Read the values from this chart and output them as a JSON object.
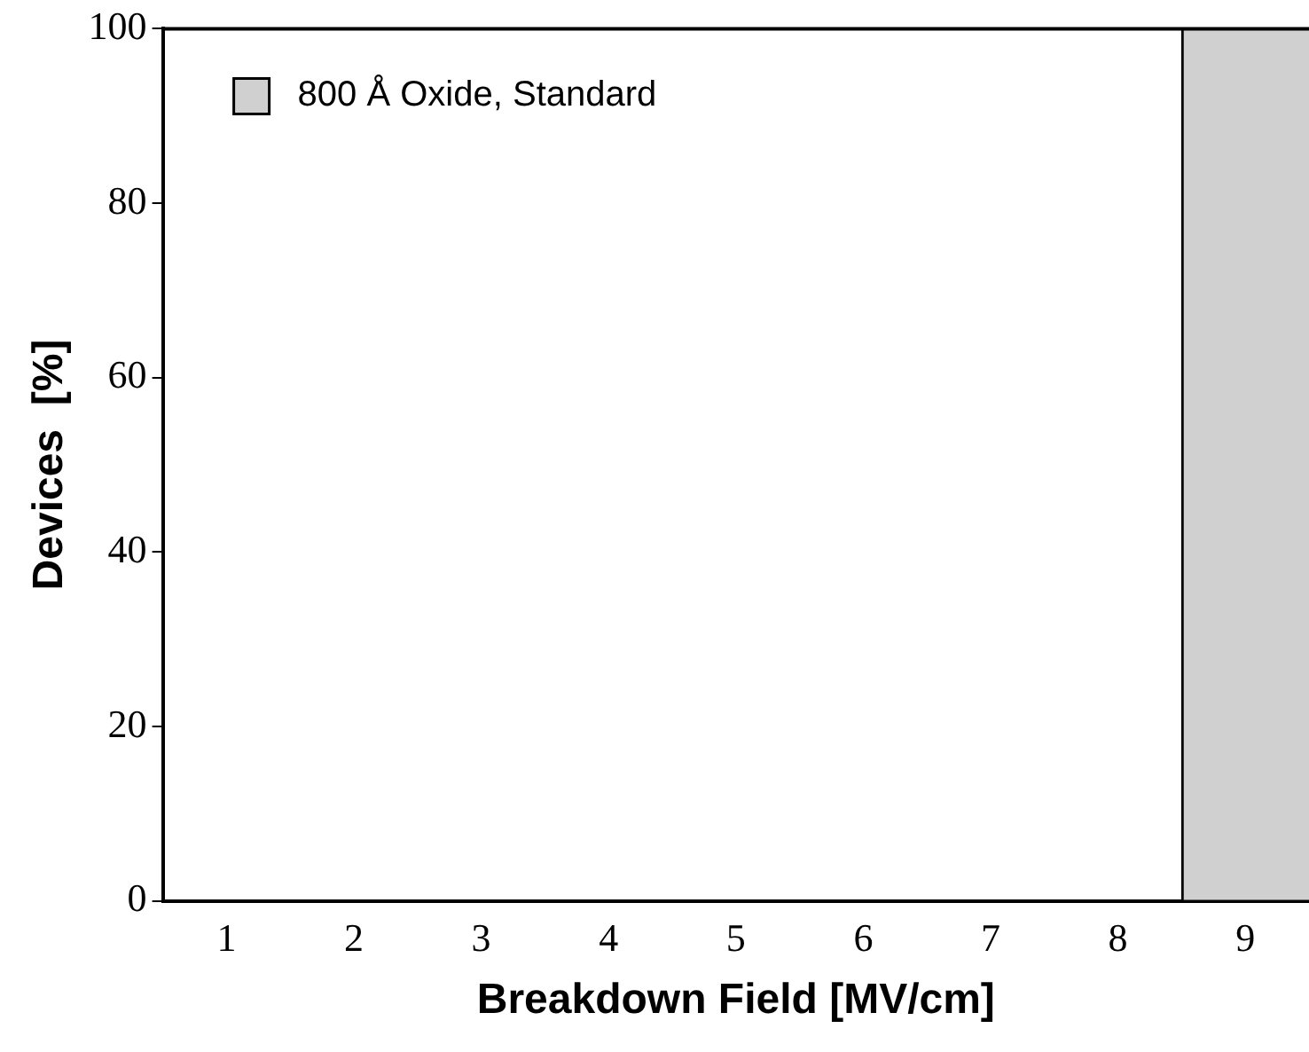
{
  "chart_data": {
    "type": "bar",
    "xlabel": "Breakdown Field [MV/cm]",
    "ylabel": "Devices  [%]",
    "categories": [
      "1",
      "2",
      "3",
      "4",
      "5",
      "6",
      "7",
      "8",
      "9"
    ],
    "series": [
      {
        "name": "800 Å Oxide, Standard",
        "color": "#d0d0d0",
        "values": [
          0,
          0,
          0,
          0,
          0,
          0,
          0,
          0,
          100
        ]
      }
    ],
    "ylim": [
      0,
      100
    ],
    "yticks": [
      0,
      20,
      40,
      60,
      80,
      100
    ],
    "grid": false,
    "legend": "top left"
  }
}
